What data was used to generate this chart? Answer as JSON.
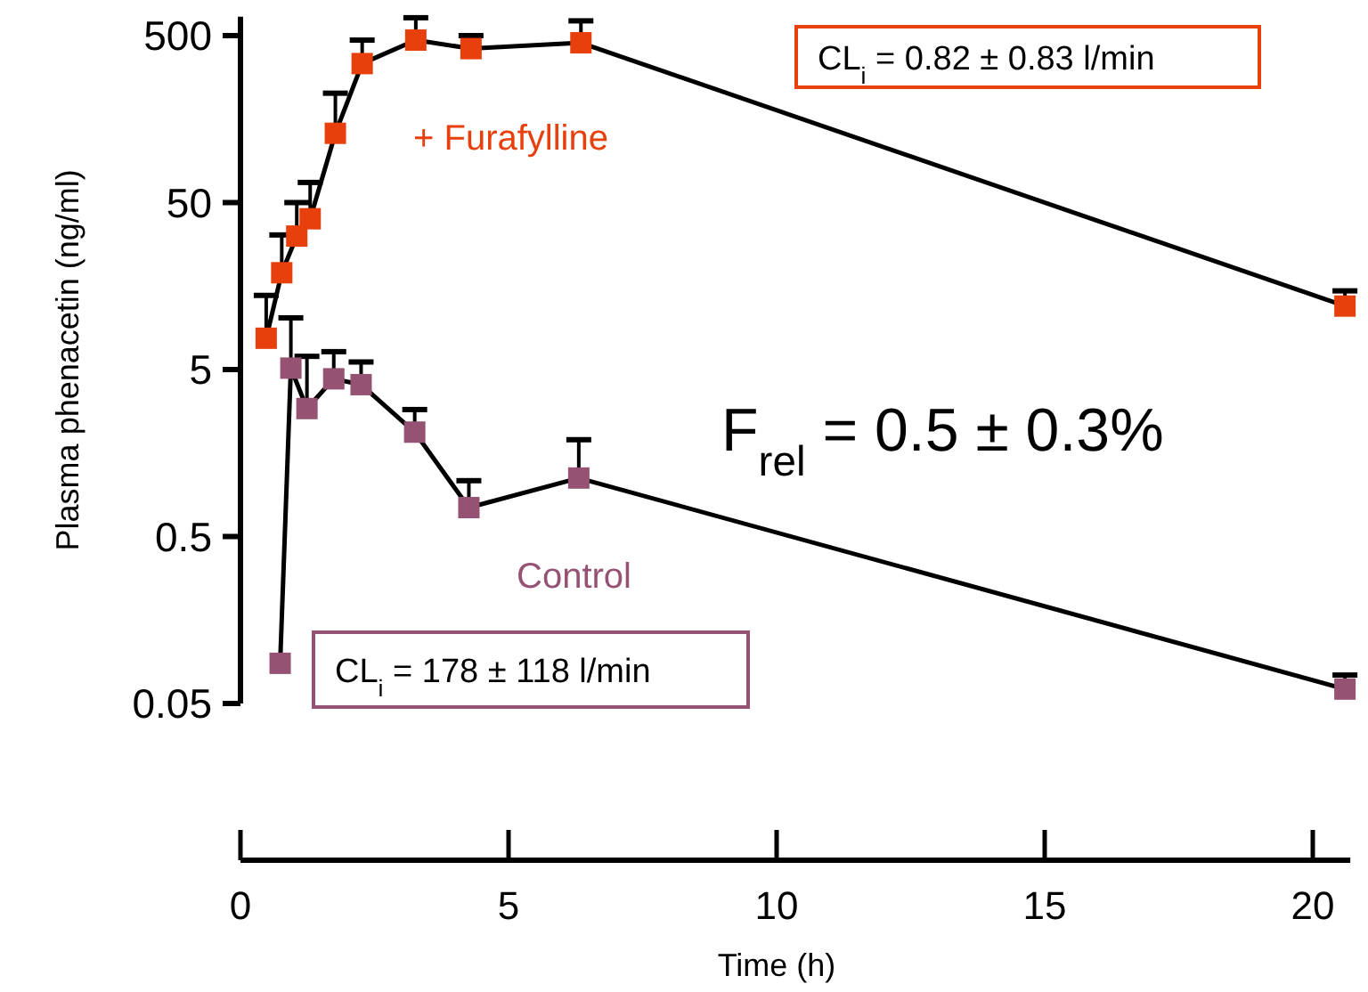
{
  "chart_data": {
    "type": "line",
    "xlabel": "Time (h)",
    "ylabel": "Plasma phenacetin (ng/ml)",
    "log": "y",
    "xlim": [
      0,
      20.7
    ],
    "xticks": [
      0,
      5,
      10,
      15,
      20
    ],
    "ylim": [
      0.05,
      650
    ],
    "yticks": [
      0.05,
      0.5,
      5,
      50,
      500
    ],
    "marker": "square",
    "line_style": "solid",
    "grid": false,
    "series": [
      {
        "name": "+ Furafylline",
        "color": "#e8400c",
        "x": [
          0.48,
          0.77,
          1.05,
          1.3,
          1.77,
          2.27,
          3.27,
          4.3,
          6.35,
          20.6
        ],
        "values": [
          7.7,
          19,
          31.5,
          40,
          130,
          340,
          470,
          418,
          453,
          12
        ],
        "errors": [
          [
            7.7,
            13.9
          ],
          [
            19,
            32
          ],
          [
            31.5,
            50
          ],
          [
            40,
            66
          ],
          [
            130,
            226
          ],
          [
            340,
            470
          ],
          [
            470,
            640
          ],
          [
            418,
            500
          ],
          [
            453,
            613
          ],
          [
            12,
            14.8
          ]
        ]
      },
      {
        "name": "Control",
        "color": "#955273",
        "x": [
          0.74,
          0.94,
          1.24,
          1.74,
          2.25,
          3.25,
          4.26,
          6.31,
          20.6
        ],
        "values": [
          0.087,
          5.1,
          2.92,
          4.4,
          4.06,
          2.11,
          0.745,
          1.12,
          0.061
        ],
        "errors": [
          null,
          [
            5.1,
            10.2
          ],
          [
            2.92,
            6.0
          ],
          [
            4.4,
            6.4
          ],
          [
            4.06,
            5.55
          ],
          [
            2.11,
            2.88
          ],
          [
            0.745,
            1.08
          ],
          [
            1.12,
            1.9
          ],
          [
            0.061,
            0.074
          ]
        ]
      }
    ],
    "annotations": [
      "CL$_{i}$ = 0.82 ± 0.83 l/min",
      "CL$_{i}$ = 178 ± 118 l/min",
      "F$_{rel}$ = 0.5 ± 0.3%"
    ]
  }
}
